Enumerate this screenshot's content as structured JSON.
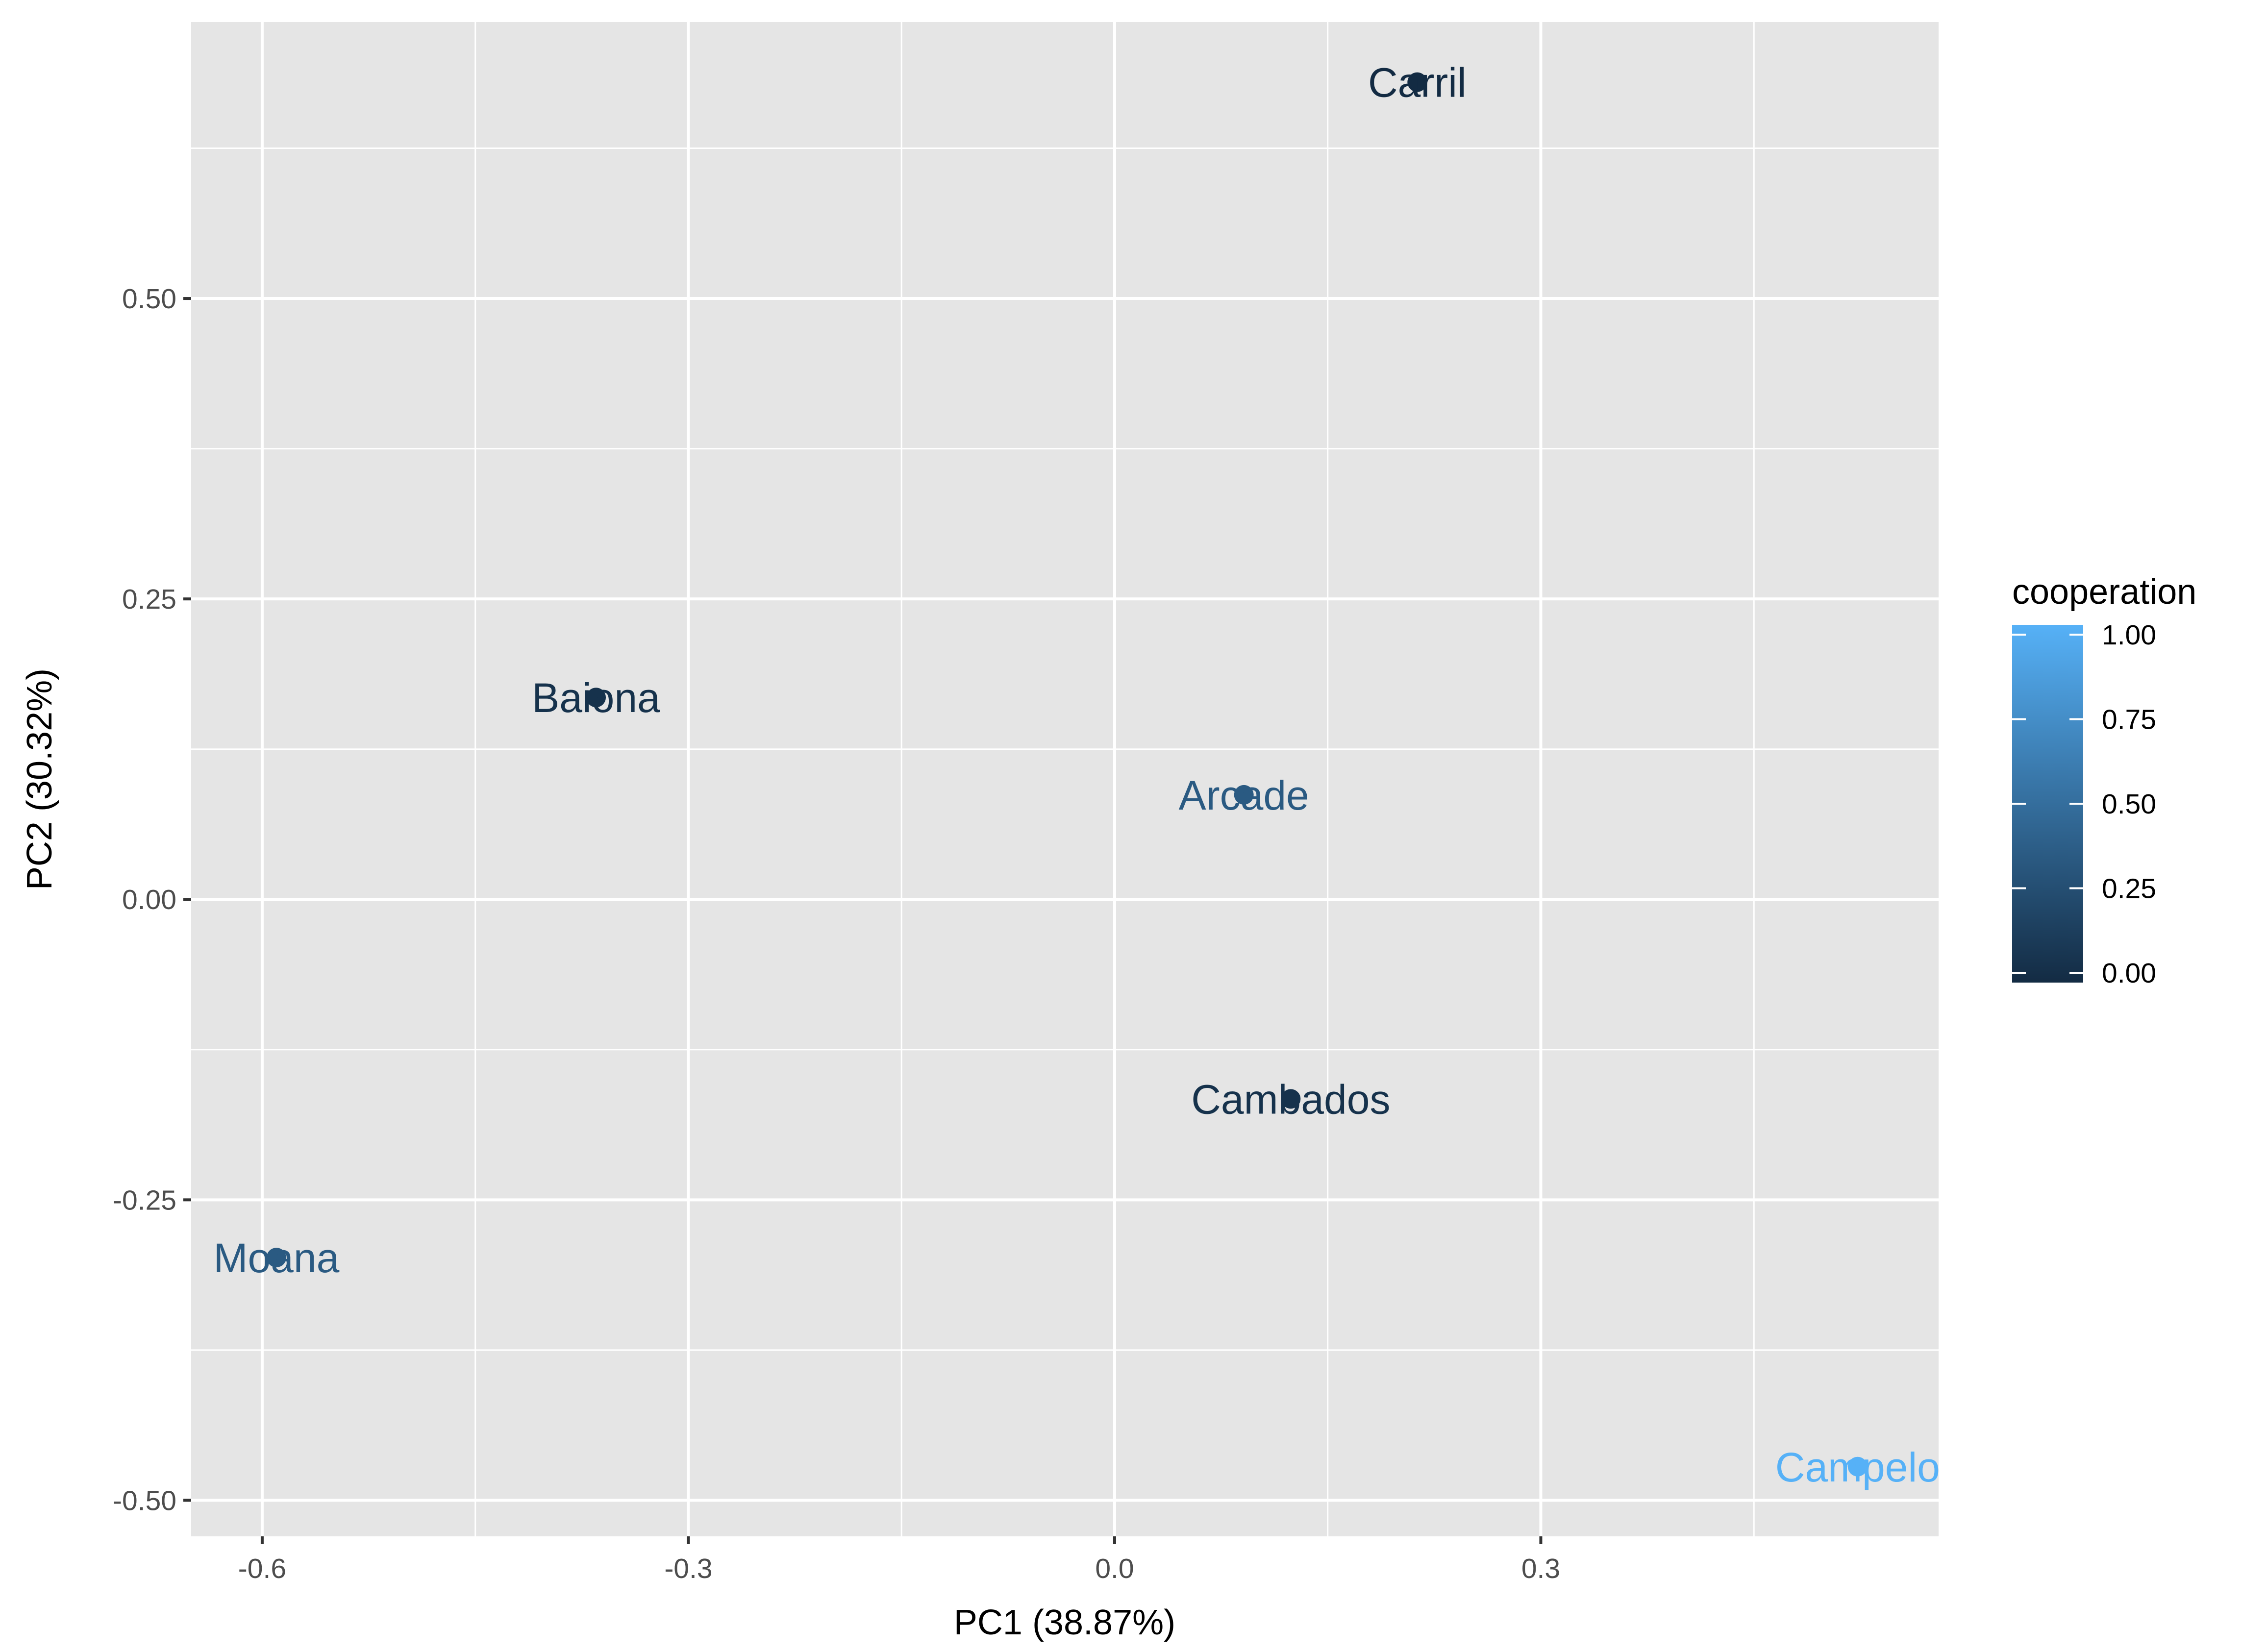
{
  "chart_data": {
    "type": "scatter",
    "title": "",
    "xlabel": "PC1 (38.87%)",
    "ylabel": "PC2 (30.32%)",
    "xlim": [
      -0.65,
      0.58
    ],
    "ylim": [
      -0.53,
      0.73
    ],
    "x_ticks": [
      -0.6,
      -0.3,
      0.0,
      0.3
    ],
    "x_tick_labels": [
      "-0.6",
      "-0.3",
      "0.0",
      "0.3"
    ],
    "y_ticks": [
      0.5,
      0.25,
      0.0,
      -0.25,
      -0.5
    ],
    "y_tick_labels": [
      "0.50",
      "0.25",
      "0.00",
      "-0.25",
      "-0.50"
    ],
    "grid": true,
    "points": [
      {
        "label": "Carril",
        "x": 0.213,
        "y": 0.68,
        "cooperation": 0.0
      },
      {
        "label": "Baiona",
        "x": -0.365,
        "y": 0.168,
        "cooperation": 0.05
      },
      {
        "label": "Arcade",
        "x": 0.091,
        "y": 0.087,
        "cooperation": 0.35
      },
      {
        "label": "Cambados",
        "x": 0.124,
        "y": -0.166,
        "cooperation": 0.05
      },
      {
        "label": "Moana",
        "x": -0.59,
        "y": -0.298,
        "cooperation": 0.35
      },
      {
        "label": "Campelo",
        "x": 0.523,
        "y": -0.472,
        "cooperation": 1.0
      }
    ],
    "legend": {
      "title": "cooperation",
      "placement": "right",
      "type": "colorbar",
      "ticks": [
        1.0,
        0.75,
        0.5,
        0.25,
        0.0
      ],
      "tick_labels": [
        "1.00",
        "0.75",
        "0.50",
        "0.25",
        "0.00"
      ],
      "color_low": "#132B43",
      "color_high": "#56B1F7"
    },
    "colors": {
      "panel_background": "#e5e5e5",
      "grid": "#ffffff"
    }
  }
}
